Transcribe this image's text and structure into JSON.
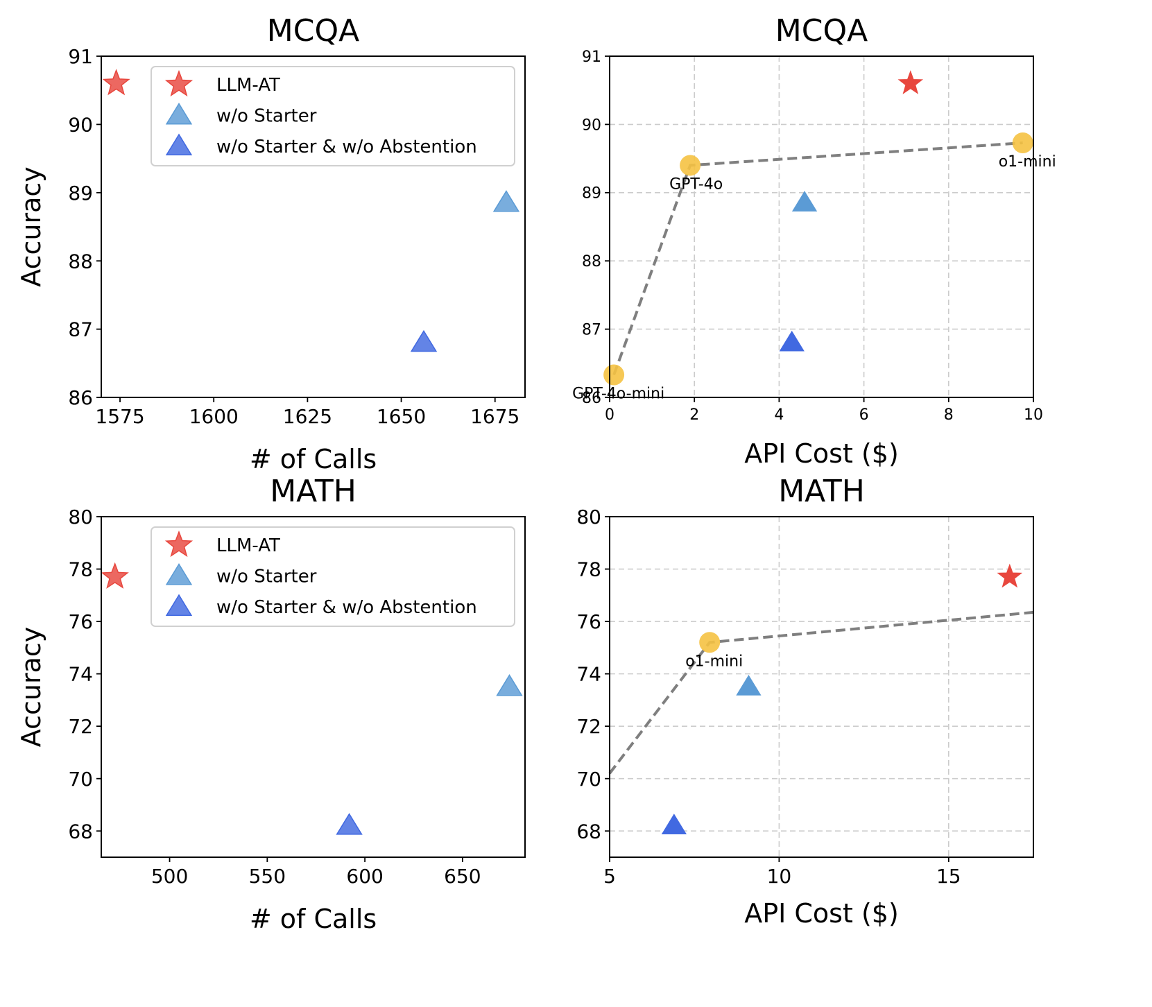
{
  "legend_entries": [
    {
      "name": "LLM-AT",
      "marker": "star",
      "color": "#e8473e"
    },
    {
      "name": "w/o Starter",
      "marker": "triangle",
      "color": "#5b9bd5"
    },
    {
      "name": "w/o Starter & w/o Abstention",
      "marker": "triangle",
      "color": "#4169e1"
    }
  ],
  "colors": {
    "llm_at": "#e8473e",
    "wo_starter": "#5b9bd5",
    "wo_starter_abstention": "#4169e1",
    "baseline": "#f5c242",
    "frontier_line": "#7f7f7f",
    "grid": "#cccccc"
  },
  "chart_data": [
    {
      "id": "mcqa_calls",
      "type": "scatter",
      "title": "MCQA",
      "xlabel": "# of Calls",
      "ylabel": "Accuracy",
      "xlim": [
        1570,
        1683
      ],
      "ylim": [
        86,
        91
      ],
      "xticks": [
        1575,
        1600,
        1625,
        1650,
        1675
      ],
      "yticks": [
        86,
        87,
        88,
        89,
        90,
        91
      ],
      "grid": false,
      "legend": "upper-right",
      "series": [
        {
          "name": "LLM-AT",
          "marker": "star",
          "points": [
            [
              1574,
              90.6
            ]
          ]
        },
        {
          "name": "w/o Starter",
          "marker": "triangle",
          "points": [
            [
              1678,
              88.85
            ]
          ]
        },
        {
          "name": "w/o Starter & w/o Abstention",
          "marker": "triangle",
          "points": [
            [
              1656,
              86.8
            ]
          ]
        }
      ]
    },
    {
      "id": "mcqa_cost",
      "type": "scatter",
      "title": "MCQA",
      "xlabel": "API Cost ($)",
      "ylabel": "",
      "xlim": [
        0,
        10
      ],
      "ylim": [
        86,
        91
      ],
      "xticks": [
        0,
        2,
        4,
        6,
        8,
        10
      ],
      "yticks": [
        86,
        87,
        88,
        89,
        90,
        91
      ],
      "grid": true,
      "legend": "none",
      "series": [
        {
          "name": "LLM-AT",
          "marker": "star",
          "points": [
            [
              7.1,
              90.6
            ]
          ]
        },
        {
          "name": "w/o Starter",
          "marker": "triangle",
          "points": [
            [
              4.6,
              88.85
            ]
          ]
        },
        {
          "name": "w/o Starter & w/o Abstention",
          "marker": "triangle",
          "points": [
            [
              4.3,
              86.8
            ]
          ]
        }
      ],
      "baselines": [
        {
          "label": "GPT-4o-mini",
          "x": 0.1,
          "y": 86.33
        },
        {
          "label": "GPT-4o",
          "x": 1.9,
          "y": 89.4
        },
        {
          "label": "o1-mini",
          "x": 9.75,
          "y": 89.73
        }
      ],
      "frontier": [
        [
          0.1,
          86.33
        ],
        [
          1.9,
          89.4
        ],
        [
          9.75,
          89.73
        ]
      ]
    },
    {
      "id": "math_calls",
      "type": "scatter",
      "title": "MATH",
      "xlabel": "# of Calls",
      "ylabel": "Accuracy",
      "xlim": [
        465,
        682
      ],
      "ylim": [
        67,
        80
      ],
      "xticks": [
        500,
        550,
        600,
        650
      ],
      "yticks": [
        68,
        70,
        72,
        74,
        76,
        78,
        80
      ],
      "grid": false,
      "legend": "upper-right",
      "series": [
        {
          "name": "LLM-AT",
          "marker": "star",
          "points": [
            [
              472,
              77.7
            ]
          ]
        },
        {
          "name": "w/o Starter",
          "marker": "triangle",
          "points": [
            [
              674,
              73.5
            ]
          ]
        },
        {
          "name": "w/o Starter & w/o Abstention",
          "marker": "triangle",
          "points": [
            [
              592,
              68.2
            ]
          ]
        }
      ]
    },
    {
      "id": "math_cost",
      "type": "scatter",
      "title": "MATH",
      "xlabel": "API Cost ($)",
      "ylabel": "",
      "xlim": [
        5,
        17.5
      ],
      "ylim": [
        67,
        80
      ],
      "xticks": [
        5,
        10,
        15
      ],
      "yticks": [
        68,
        70,
        72,
        74,
        76,
        78,
        80
      ],
      "grid": true,
      "legend": "none",
      "series": [
        {
          "name": "LLM-AT",
          "marker": "star",
          "points": [
            [
              16.8,
              77.7
            ]
          ]
        },
        {
          "name": "w/o Starter",
          "marker": "triangle",
          "points": [
            [
              9.1,
              73.5
            ]
          ]
        },
        {
          "name": "w/o Starter & w/o Abstention",
          "marker": "triangle",
          "points": [
            [
              6.9,
              68.2
            ]
          ]
        }
      ],
      "baselines": [
        {
          "label": "o1-mini",
          "x": 7.95,
          "y": 75.2
        }
      ],
      "frontier": [
        [
          5.0,
          70.2
        ],
        [
          7.95,
          75.2
        ],
        [
          17.5,
          76.35
        ]
      ]
    }
  ]
}
